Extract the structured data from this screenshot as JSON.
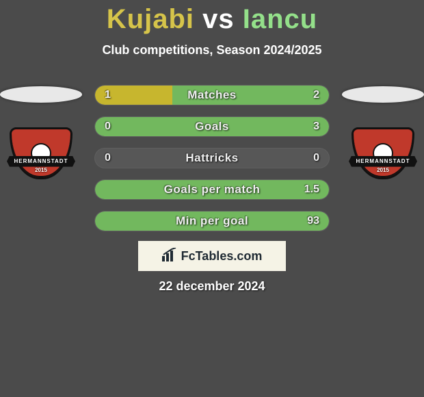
{
  "header": {
    "player_left": "Kujabi",
    "vs": "vs",
    "player_right": "Iancu",
    "subtitle": "Club competitions, Season 2024/2025",
    "color_left": "#d6c44a",
    "color_right": "#94e08a"
  },
  "teams": {
    "left": {
      "name": "HERMANNSTADT",
      "year": "2015",
      "shield_color": "#c0392b",
      "ellipse_color": "#e8e8e8"
    },
    "right": {
      "name": "HERMANNSTADT",
      "year": "2015",
      "shield_color": "#c0392b",
      "ellipse_color": "#e8e8e8"
    }
  },
  "stats": {
    "bar_background": "#575757",
    "bar_color_left": "#c7b62e",
    "bar_color_right": "#72b85e",
    "text_color": "#f0f0f0",
    "rows": [
      {
        "label": "Matches",
        "left": "1",
        "right": "2",
        "left_pct": 33,
        "right_pct": 67
      },
      {
        "label": "Goals",
        "left": "0",
        "right": "3",
        "left_pct": 0,
        "right_pct": 100
      },
      {
        "label": "Hattricks",
        "left": "0",
        "right": "0",
        "left_pct": 0,
        "right_pct": 0
      },
      {
        "label": "Goals per match",
        "left": "",
        "right": "1.5",
        "left_pct": 0,
        "right_pct": 100
      },
      {
        "label": "Min per goal",
        "left": "",
        "right": "93",
        "left_pct": 0,
        "right_pct": 100
      }
    ]
  },
  "footer": {
    "brand": "FcTables.com",
    "date": "22 december 2024",
    "box_bg": "#f5f3e6",
    "box_text": "#1f2a33"
  }
}
